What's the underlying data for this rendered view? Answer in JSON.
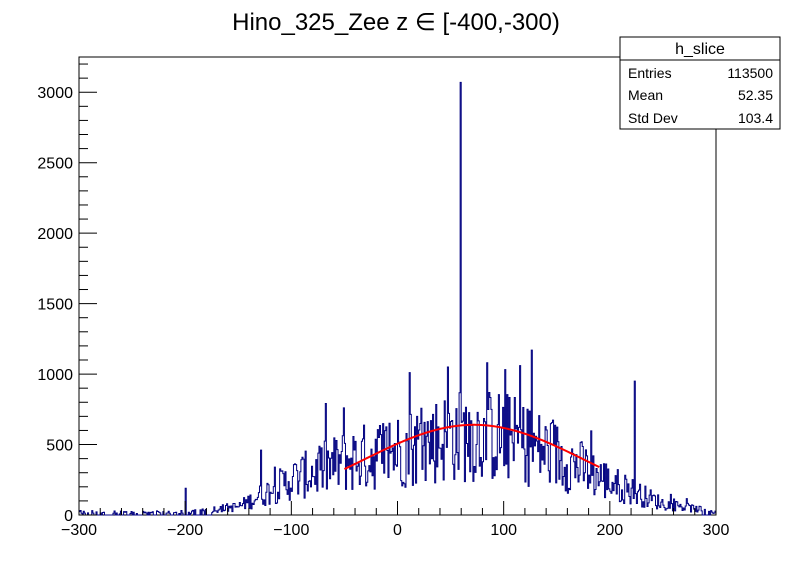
{
  "chart_data": {
    "type": "histogram",
    "title": "Hino_325_Zee z  ∈ [-400,-300)",
    "xlabel": "",
    "ylabel": "",
    "xlim": [
      -300,
      300
    ],
    "ylim": [
      0,
      3250
    ],
    "x_ticks": [
      -300,
      -200,
      -100,
      0,
      100,
      200,
      300
    ],
    "x_tick_labels": [
      "−300",
      "−200",
      "−100",
      "0",
      "100",
      "200",
      "300"
    ],
    "y_ticks": [
      0,
      500,
      1000,
      1500,
      2000,
      2500,
      3000
    ],
    "y_tick_labels": [
      "0",
      "500",
      "1000",
      "1500",
      "2000",
      "2500",
      "3000"
    ],
    "grid": false,
    "histogram": {
      "name": "h_slice",
      "color": "#000080",
      "bin_width": 1,
      "envelope": [
        [
          -300,
          20
        ],
        [
          -200,
          20
        ],
        [
          -150,
          60
        ],
        [
          -100,
          250
        ],
        [
          -50,
          380
        ],
        [
          0,
          460
        ],
        [
          50,
          560
        ],
        [
          100,
          560
        ],
        [
          150,
          420
        ],
        [
          200,
          230
        ],
        [
          250,
          80
        ],
        [
          300,
          20
        ]
      ],
      "noise_amplitude_fraction": 0.6,
      "spikes": [
        {
          "x": 59,
          "y": 3070
        },
        {
          "x": 126,
          "y": 1170
        },
        {
          "x": 223,
          "y": 950
        },
        {
          "x": 84,
          "y": 1080
        },
        {
          "x": 115,
          "y": 1060
        },
        {
          "x": 11,
          "y": 1010
        },
        {
          "x": 47,
          "y": 1050
        },
        {
          "x": -51,
          "y": 760
        },
        {
          "x": -129,
          "y": 460
        },
        {
          "x": -200,
          "y": 190
        }
      ]
    },
    "fit": {
      "name": "gaussian fit",
      "color": "#ff0000",
      "type": "gaussian",
      "amplitude": 640,
      "mean": 72,
      "sigma": 105,
      "range": [
        -50,
        190
      ]
    }
  },
  "stats_box": {
    "title": "h_slice",
    "rows": [
      {
        "label": "Entries",
        "value": "113500"
      },
      {
        "label": "Mean",
        "value": "52.35"
      },
      {
        "label": "Std Dev",
        "value": "103.4"
      }
    ]
  }
}
